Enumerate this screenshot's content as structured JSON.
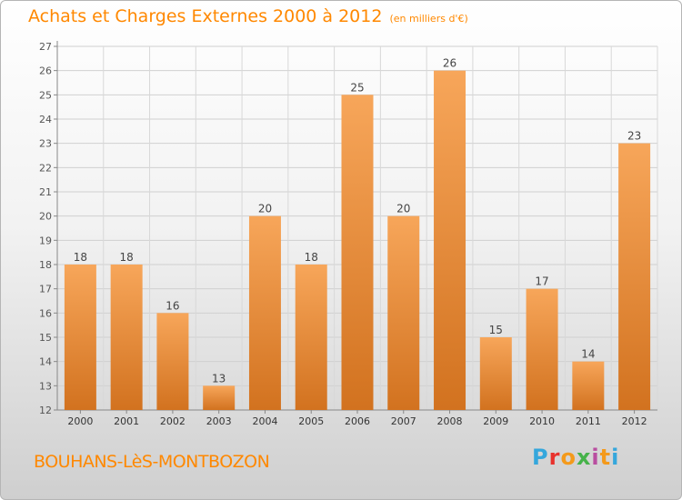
{
  "header": {
    "title": "Achats et Charges Externes 2000 à 2012",
    "unit": "(en milliers d'€)"
  },
  "footer": {
    "place": "BOUHANS-LèS-MONTBOZON",
    "logo_letters": [
      "P",
      "r",
      "o",
      "x",
      "i",
      "t",
      "i"
    ],
    "logo_colors": [
      "#35a7dc",
      "#e8322d",
      "#f49a1b",
      "#46b24a",
      "#b94ea0",
      "#f49a1b",
      "#35a7dc"
    ]
  },
  "colors": {
    "bar_light": "#f7a65a",
    "bar_dark": "#d2721f",
    "title": "#ff8800"
  },
  "chart_data": {
    "type": "bar",
    "title": "Achats et Charges Externes 2000 à 2012",
    "unit": "(en milliers d'€)",
    "categories": [
      "2000",
      "2001",
      "2002",
      "2003",
      "2004",
      "2005",
      "2006",
      "2007",
      "2008",
      "2009",
      "2010",
      "2011",
      "2012"
    ],
    "values": [
      18,
      18,
      16,
      13,
      20,
      18,
      25,
      20,
      26,
      15,
      17,
      14,
      23
    ],
    "ylim": [
      12,
      27
    ],
    "yticks": [
      12,
      13,
      14,
      15,
      16,
      17,
      18,
      19,
      20,
      21,
      22,
      23,
      24,
      25,
      26,
      27
    ],
    "grid": true,
    "data_labels": true
  }
}
